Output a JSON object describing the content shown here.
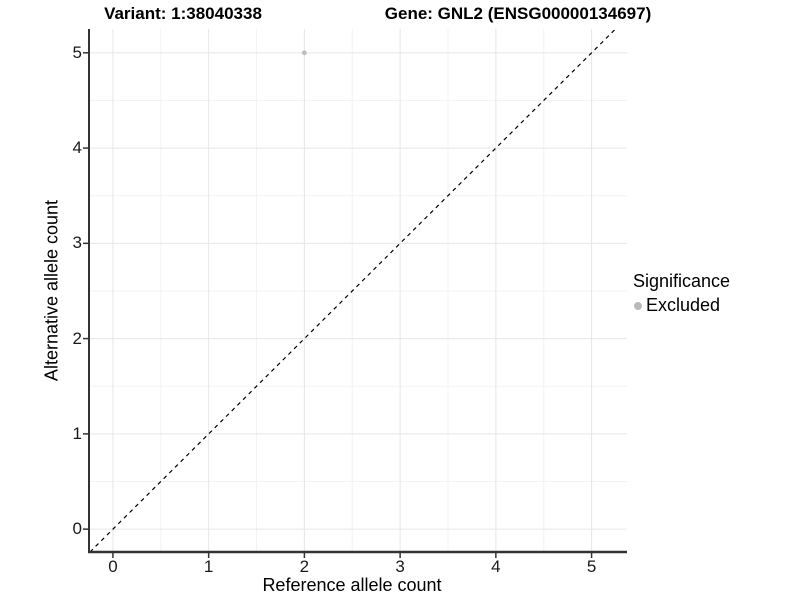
{
  "titles": {
    "variant": "Variant: 1:38040338",
    "gene": "Gene: GNL2 (ENSG00000134697)"
  },
  "chart_data": {
    "type": "scatter",
    "title_left": "Variant: 1:38040338",
    "title_right": "Gene: GNL2 (ENSG00000134697)",
    "xlabel": "Reference allele count",
    "ylabel": "Alternative allele count",
    "xlim": [
      -0.25,
      5.37
    ],
    "ylim": [
      -0.24,
      5.25
    ],
    "x_ticks": [
      0,
      1,
      2,
      3,
      4,
      5
    ],
    "y_ticks": [
      0,
      1,
      2,
      3,
      4,
      5
    ],
    "grid": "major and minor gridlines on, white background",
    "points": [
      {
        "x": 2,
        "y": 5,
        "series": "Excluded"
      }
    ],
    "reference_line": {
      "kind": "identity y=x",
      "style": "dashed",
      "from": [
        -0.24,
        -0.24
      ],
      "to": [
        5.25,
        5.25
      ]
    },
    "legend": {
      "title": "Significance",
      "position": "right",
      "items": [
        {
          "label": "Excluded",
          "color": "#b9b9b9",
          "marker": "circle"
        }
      ]
    },
    "colors": {
      "point": "#bdbdbd",
      "grid_major": "#e6e6e6",
      "grid_minor": "#f3f3f3",
      "axis_line": "#333333",
      "tick_mark": "#333333",
      "reference_line": "#000000",
      "background": "#ffffff"
    }
  }
}
